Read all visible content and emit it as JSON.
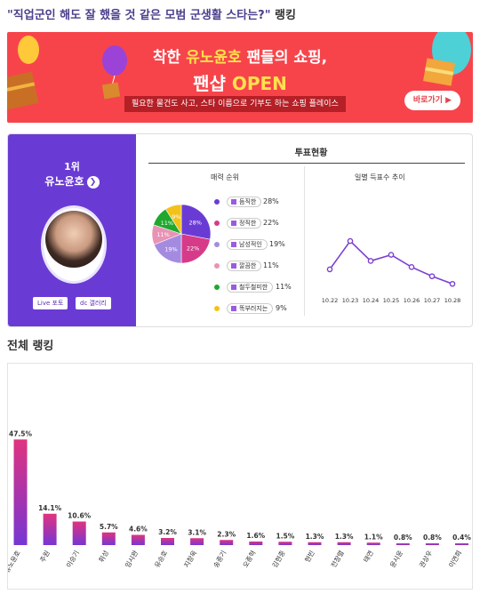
{
  "page": {
    "title_main": "\"직업군인 해도 잘 했을 것 같은 모범 군생활 스타는?\"",
    "title_suffix": " 랭킹"
  },
  "banner": {
    "line1_pre": "착한 ",
    "line1_name": "유노윤호",
    "line1_post": " 팬들의 쇼핑,",
    "line2_pre": "팬샵 ",
    "line2_open": "OPEN",
    "line3": "필요한 물건도 사고, 스타 이름으로 기부도 하는 쇼핑 플레이스",
    "cta": "바로가기 ▶",
    "colors": {
      "bg": "#f7444b",
      "accent": "#ffe14d"
    }
  },
  "vote": {
    "rank_label": "1위",
    "winner_name": "유노윤호",
    "arrow": "❯",
    "live_button": "Live 포토",
    "gallery_button": "dc 갤러리",
    "panel_title": "투표현황",
    "charm_title": "매력 순위",
    "daily_title": "일별 득표수 추이"
  },
  "chart_data": [
    {
      "type": "pie",
      "title": "매력 순위",
      "slices": [
        {
          "label": "듬직한",
          "value": 28,
          "color": "#6a3bd4",
          "pct": "28%"
        },
        {
          "label": "정직한",
          "value": 22,
          "color": "#d63b8a",
          "pct": "22%"
        },
        {
          "label": "남성적인",
          "value": 19,
          "color": "#a48be0",
          "pct": "19%"
        },
        {
          "label": "깔끔한",
          "value": 11,
          "color": "#e893b5",
          "pct": "11%"
        },
        {
          "label": "철두철미한",
          "value": 11,
          "color": "#1fa82d",
          "pct": "11%"
        },
        {
          "label": "똑부러지는",
          "value": 9,
          "color": "#f2c21b",
          "pct": "9%"
        }
      ]
    },
    {
      "type": "line",
      "title": "일별 득표수 추이",
      "x": [
        "10.22",
        "10.23",
        "10.24",
        "10.25",
        "10.26",
        "10.27",
        "10.28"
      ],
      "values": [
        35,
        72,
        46,
        54,
        38,
        26,
        16
      ],
      "ylim": [
        0,
        100
      ],
      "color": "#7b3fd0"
    },
    {
      "type": "bar",
      "title": "전체 랭킹",
      "categories": [
        "유노윤호",
        "주원",
        "이승기",
        "휘성",
        "임시완",
        "유승호",
        "지창욱",
        "송중기",
        "오종혁",
        "김현중",
        "현빈",
        "전창렬",
        "태연",
        "윤시윤",
        "권상우",
        "이연희"
      ],
      "values": [
        47.5,
        14.1,
        10.6,
        5.7,
        4.6,
        3.2,
        3.1,
        2.3,
        1.6,
        1.5,
        1.3,
        1.3,
        1.1,
        0.8,
        0.8,
        0.4
      ],
      "value_labels": [
        "47.5%",
        "14.1%",
        "10.6%",
        "5.7%",
        "4.6%",
        "3.2%",
        "3.1%",
        "2.3%",
        "1.6%",
        "1.5%",
        "1.3%",
        "1.3%",
        "1.1%",
        "0.8%",
        "0.8%",
        "0.4%"
      ],
      "ylim": [
        0,
        100
      ],
      "colors": {
        "top": "#e0337f",
        "bottom": "#7636d4"
      }
    }
  ],
  "ranking": {
    "title": "전체 랭킹"
  }
}
